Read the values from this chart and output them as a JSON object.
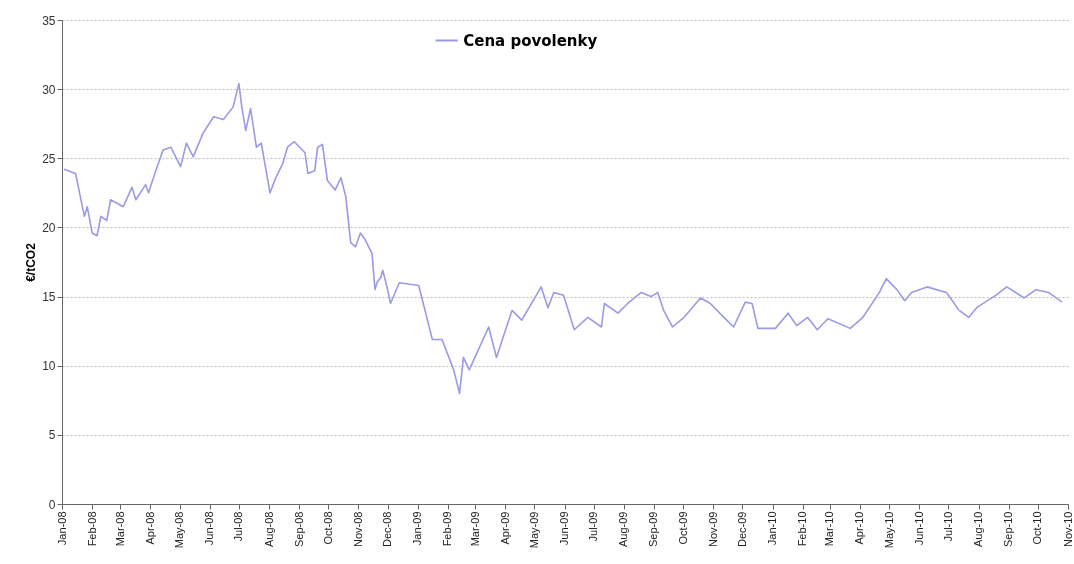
{
  "chart_data": {
    "type": "line",
    "ylabel": "€/tCO2",
    "x": [
      "2008-01-03",
      "2008-01-15",
      "2008-01-24",
      "2008-01-27",
      "2008-02-01",
      "2008-02-06",
      "2008-02-10",
      "2008-02-16",
      "2008-02-20",
      "2008-03-04",
      "2008-03-13",
      "2008-03-17",
      "2008-03-27",
      "2008-03-30",
      "2008-04-07",
      "2008-04-14",
      "2008-04-22",
      "2008-05-02",
      "2008-05-08",
      "2008-05-15",
      "2008-05-25",
      "2008-06-05",
      "2008-06-15",
      "2008-06-25",
      "2008-07-01",
      "2008-07-04",
      "2008-07-08",
      "2008-07-13",
      "2008-07-19",
      "2008-07-24",
      "2008-08-02",
      "2008-08-08",
      "2008-08-15",
      "2008-08-20",
      "2008-08-27",
      "2008-09-07",
      "2008-09-10",
      "2008-09-17",
      "2008-09-20",
      "2008-09-25",
      "2008-09-30",
      "2008-10-08",
      "2008-10-14",
      "2008-10-19",
      "2008-10-24",
      "2008-10-29",
      "2008-11-03",
      "2008-11-08",
      "2008-11-15",
      "2008-11-18",
      "2008-11-20",
      "2008-11-24",
      "2008-11-26",
      "2008-12-01",
      "2008-12-04",
      "2008-12-13",
      "2009-01-02",
      "2009-01-16",
      "2009-01-26",
      "2009-02-07",
      "2009-02-13",
      "2009-02-17",
      "2009-02-23",
      "2009-03-15",
      "2009-03-23",
      "2009-04-08",
      "2009-04-18",
      "2009-05-08",
      "2009-05-15",
      "2009-05-21",
      "2009-05-31",
      "2009-06-11",
      "2009-06-25",
      "2009-07-09",
      "2009-07-12",
      "2009-07-26",
      "2009-08-05",
      "2009-08-19",
      "2009-08-29",
      "2009-09-05",
      "2009-09-11",
      "2009-09-20",
      "2009-10-02",
      "2009-10-19",
      "2009-10-29",
      "2009-11-12",
      "2009-11-22",
      "2009-12-04",
      "2009-12-11",
      "2009-12-17",
      "2010-01-04",
      "2010-01-17",
      "2010-01-26",
      "2010-02-06",
      "2010-02-16",
      "2010-02-27",
      "2010-03-22",
      "2010-04-04",
      "2010-04-21",
      "2010-04-28",
      "2010-05-09",
      "2010-05-17",
      "2010-05-24",
      "2010-06-09",
      "2010-06-29",
      "2010-07-12",
      "2010-07-22",
      "2010-07-30",
      "2010-08-19",
      "2010-08-30",
      "2010-09-17",
      "2010-09-29",
      "2010-10-12",
      "2010-10-26"
    ],
    "series": [
      {
        "name": "Cena povolenky",
        "color": "#9a9ae6",
        "values": [
          24.2,
          23.9,
          20.8,
          21.5,
          19.6,
          19.4,
          20.8,
          20.5,
          22.0,
          21.5,
          22.9,
          22.0,
          23.1,
          22.5,
          24.2,
          25.6,
          25.8,
          24.4,
          26.1,
          25.1,
          26.8,
          28.0,
          27.8,
          28.7,
          30.4,
          28.7,
          27.0,
          28.6,
          25.8,
          26.1,
          22.5,
          23.6,
          24.6,
          25.8,
          26.2,
          25.4,
          23.9,
          24.1,
          25.8,
          26.0,
          23.4,
          22.7,
          23.6,
          22.2,
          18.9,
          18.6,
          19.6,
          19.1,
          18.1,
          15.5,
          16.0,
          16.4,
          16.9,
          15.5,
          14.5,
          16.0,
          15.8,
          11.9,
          11.9,
          9.7,
          8.0,
          10.6,
          9.7,
          12.8,
          10.6,
          14.0,
          13.3,
          15.7,
          14.2,
          15.3,
          15.1,
          12.6,
          13.5,
          12.8,
          14.5,
          13.8,
          14.5,
          15.3,
          15.0,
          15.3,
          14.0,
          12.8,
          13.5,
          14.9,
          14.5,
          13.5,
          12.8,
          14.6,
          14.5,
          12.7,
          12.7,
          13.8,
          12.9,
          13.5,
          12.6,
          13.4,
          12.7,
          13.5,
          15.3,
          16.3,
          15.5,
          14.7,
          15.3,
          15.7,
          15.3,
          14.0,
          13.5,
          14.2,
          15.1,
          15.7,
          14.9,
          15.5,
          15.3,
          14.6
        ]
      }
    ],
    "xlim": [
      "2008-01-01",
      "2010-11-01"
    ],
    "xticks": [
      {
        "value": "2008-01",
        "label": "Jan-08"
      },
      {
        "value": "2008-02",
        "label": "Feb-08"
      },
      {
        "value": "2008-03",
        "label": "Mar-08"
      },
      {
        "value": "2008-04",
        "label": "Apr-08"
      },
      {
        "value": "2008-05",
        "label": "May-08"
      },
      {
        "value": "2008-06",
        "label": "Jun-08"
      },
      {
        "value": "2008-07",
        "label": "Jul-08"
      },
      {
        "value": "2008-08",
        "label": "Aug-08"
      },
      {
        "value": "2008-09",
        "label": "Sep-08"
      },
      {
        "value": "2008-10",
        "label": "Oct-08"
      },
      {
        "value": "2008-11",
        "label": "Nov-08"
      },
      {
        "value": "2008-12",
        "label": "Dec-08"
      },
      {
        "value": "2009-01",
        "label": "Jan-09"
      },
      {
        "value": "2009-02",
        "label": "Feb-09"
      },
      {
        "value": "2009-03",
        "label": "Mar-09"
      },
      {
        "value": "2009-04",
        "label": "Apr-09"
      },
      {
        "value": "2009-05",
        "label": "May-09"
      },
      {
        "value": "2009-06",
        "label": "Jun-09"
      },
      {
        "value": "2009-07",
        "label": "Jul-09"
      },
      {
        "value": "2009-08",
        "label": "Aug-09"
      },
      {
        "value": "2009-09",
        "label": "Sep-09"
      },
      {
        "value": "2009-10",
        "label": "Oct-09"
      },
      {
        "value": "2009-11",
        "label": "Nov-09"
      },
      {
        "value": "2009-12",
        "label": "Dec-09"
      },
      {
        "value": "2010-01",
        "label": "Jan-10"
      },
      {
        "value": "2010-02",
        "label": "Feb-10"
      },
      {
        "value": "2010-03",
        "label": "Mar-10"
      },
      {
        "value": "2010-04",
        "label": "Apr-10"
      },
      {
        "value": "2010-05",
        "label": "May-10"
      },
      {
        "value": "2010-06",
        "label": "Jun-10"
      },
      {
        "value": "2010-07",
        "label": "Jul-10"
      },
      {
        "value": "2010-08",
        "label": "Aug-10"
      },
      {
        "value": "2010-09",
        "label": "Sep-10"
      },
      {
        "value": "2010-10",
        "label": "Oct-10"
      },
      {
        "value": "2010-11",
        "label": "Nov-10"
      }
    ],
    "ylim": [
      0,
      35
    ],
    "yticks": [
      0,
      5,
      10,
      15,
      20,
      25,
      30,
      35
    ],
    "grid": "y",
    "legend": "top",
    "marker": "none",
    "line_style": "solid"
  }
}
